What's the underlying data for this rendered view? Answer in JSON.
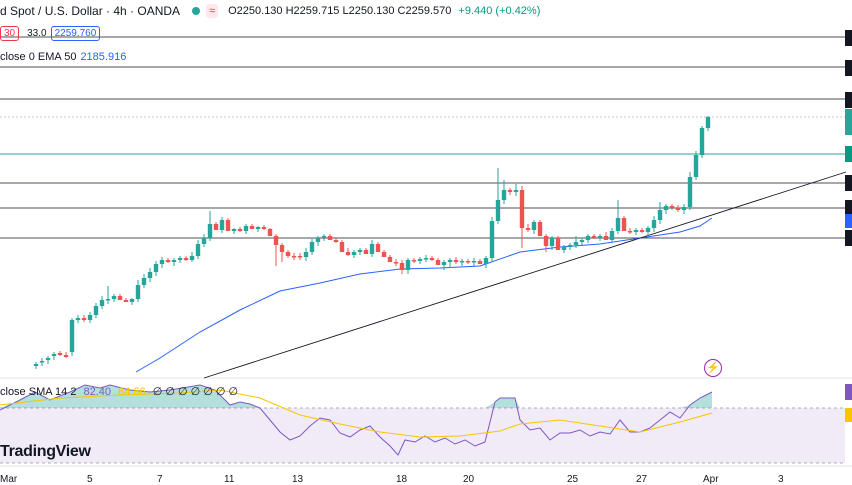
{
  "header": {
    "symbol": "d Spot / U.S. Dollar · 4h · OANDA",
    "badge": "≈",
    "ohlc": "O2250.130 H2259.715 L2250.130 C2259.570",
    "change": "+9.440 (+0.42%)"
  },
  "indicator_row": {
    "left_pill": "30",
    "mid_value": "33.0",
    "right_pill": "2259.760"
  },
  "ema_legend": {
    "label": "close 0 EMA 50",
    "value": "2185.916"
  },
  "rsi_legend": {
    "label": "close SMA 14 2",
    "rsi_value": "82.40",
    "sma_value": "64.66",
    "extra": "∅ ∅ ∅ ∅ ∅ ∅ ∅"
  },
  "logo": {
    "text": "TradingView"
  },
  "xaxis": {
    "labels": [
      "Mar",
      "5",
      "7",
      "11",
      "13",
      "18",
      "20",
      "25",
      "27",
      "Apr",
      "3"
    ]
  },
  "colors": {
    "up": "#26a69a",
    "down": "#ef5350",
    "ema": "#2962ff",
    "rsi": "#7e57c2",
    "rsi_ma": "#f7c600",
    "rsi_band": "#ede7f6",
    "accent_line": "#26a69a"
  },
  "icons": [
    "bolt-icon"
  ],
  "chart_data": {
    "type": "candlestick",
    "candles": [
      [
        36,
        366,
        369,
        364,
        362,
        "u"
      ],
      [
        42,
        362,
        366,
        361,
        358,
        "u"
      ],
      [
        48,
        360,
        364,
        358,
        356,
        "u"
      ],
      [
        54,
        356,
        360,
        354,
        352,
        "u"
      ],
      [
        60,
        353,
        356,
        355,
        351,
        "d"
      ],
      [
        66,
        355,
        358,
        357,
        352,
        "d"
      ],
      [
        72,
        352,
        356,
        320,
        318,
        "u"
      ],
      [
        78,
        320,
        323,
        318,
        315,
        "u"
      ],
      [
        84,
        318,
        322,
        320,
        315,
        "d"
      ],
      [
        90,
        320,
        323,
        315,
        312,
        "u"
      ],
      [
        96,
        315,
        318,
        306,
        303,
        "u"
      ],
      [
        102,
        306,
        309,
        300,
        296,
        "u"
      ],
      [
        108,
        300,
        304,
        299,
        286,
        "u"
      ],
      [
        114,
        299,
        302,
        296,
        294,
        "u"
      ],
      [
        120,
        296,
        300,
        300,
        294,
        "d"
      ],
      [
        126,
        300,
        302,
        302,
        298,
        "d"
      ],
      [
        132,
        302,
        305,
        299,
        298,
        "u"
      ],
      [
        138,
        299,
        302,
        285,
        280,
        "u"
      ],
      [
        144,
        285,
        288,
        278,
        274,
        "u"
      ],
      [
        150,
        278,
        282,
        272,
        268,
        "u"
      ],
      [
        156,
        272,
        276,
        264,
        261,
        "u"
      ],
      [
        162,
        264,
        268,
        260,
        257,
        "u"
      ],
      [
        168,
        260,
        263,
        262,
        258,
        "d"
      ],
      [
        174,
        262,
        266,
        260,
        258,
        "u"
      ],
      [
        180,
        260,
        263,
        258,
        256,
        "u"
      ],
      [
        186,
        258,
        261,
        260,
        256,
        "d"
      ],
      [
        192,
        260,
        262,
        256,
        252,
        "u"
      ],
      [
        198,
        256,
        259,
        244,
        240,
        "u"
      ],
      [
        204,
        244,
        247,
        238,
        234,
        "u"
      ],
      [
        210,
        238,
        241,
        224,
        211,
        "u"
      ],
      [
        216,
        224,
        228,
        230,
        222,
        "d"
      ],
      [
        222,
        230,
        233,
        220,
        217,
        "u"
      ],
      [
        228,
        220,
        223,
        231,
        218,
        "d"
      ],
      [
        234,
        231,
        234,
        229,
        228,
        "u"
      ],
      [
        240,
        229,
        232,
        231,
        227,
        "d"
      ],
      [
        246,
        231,
        234,
        226,
        224,
        "u"
      ],
      [
        252,
        226,
        228,
        229,
        224,
        "d"
      ],
      [
        258,
        229,
        232,
        227,
        226,
        "u"
      ],
      [
        264,
        227,
        230,
        229,
        225,
        "d"
      ],
      [
        270,
        229,
        232,
        236,
        228,
        "d"
      ],
      [
        276,
        236,
        266,
        245,
        234,
        "d"
      ],
      [
        282,
        245,
        262,
        252,
        243,
        "d"
      ],
      [
        288,
        252,
        258,
        256,
        250,
        "d"
      ],
      [
        294,
        256,
        260,
        256,
        253,
        "d"
      ],
      [
        300,
        256,
        260,
        257,
        253,
        "d"
      ],
      [
        306,
        257,
        261,
        252,
        248,
        "u"
      ],
      [
        312,
        252,
        255,
        242,
        239,
        "u"
      ],
      [
        318,
        242,
        246,
        238,
        236,
        "u"
      ],
      [
        324,
        238,
        241,
        236,
        234,
        "u"
      ],
      [
        330,
        236,
        239,
        240,
        234,
        "d"
      ],
      [
        336,
        240,
        243,
        242,
        238,
        "d"
      ],
      [
        342,
        242,
        245,
        252,
        240,
        "d"
      ],
      [
        348,
        252,
        256,
        255,
        248,
        "d"
      ],
      [
        354,
        255,
        258,
        252,
        250,
        "u"
      ],
      [
        360,
        252,
        255,
        250,
        248,
        "u"
      ],
      [
        366,
        250,
        253,
        254,
        248,
        "d"
      ],
      [
        372,
        254,
        257,
        244,
        240,
        "u"
      ],
      [
        378,
        244,
        247,
        252,
        242,
        "d"
      ],
      [
        384,
        252,
        256,
        257,
        250,
        "d"
      ],
      [
        390,
        257,
        260,
        262,
        255,
        "d"
      ],
      [
        396,
        262,
        266,
        263,
        259,
        "d"
      ],
      [
        402,
        263,
        274,
        270,
        260,
        "d"
      ],
      [
        408,
        270,
        274,
        260,
        258,
        "u"
      ],
      [
        414,
        260,
        263,
        261,
        258,
        "d"
      ],
      [
        420,
        261,
        264,
        259,
        257,
        "u"
      ],
      [
        426,
        259,
        262,
        258,
        255,
        "u"
      ],
      [
        432,
        258,
        261,
        260,
        256,
        "d"
      ],
      [
        438,
        260,
        263,
        265,
        258,
        "d"
      ],
      [
        444,
        265,
        270,
        262,
        260,
        "u"
      ],
      [
        450,
        262,
        268,
        260,
        258,
        "u"
      ],
      [
        456,
        260,
        264,
        262,
        257,
        "d"
      ],
      [
        462,
        262,
        266,
        261,
        259,
        "u"
      ],
      [
        468,
        261,
        264,
        262,
        259,
        "d"
      ],
      [
        474,
        262,
        266,
        261,
        258,
        "u"
      ],
      [
        480,
        261,
        264,
        264,
        259,
        "d"
      ],
      [
        486,
        264,
        268,
        258,
        256,
        "u"
      ],
      [
        492,
        258,
        262,
        221,
        217,
        "u"
      ],
      [
        498,
        221,
        224,
        200,
        168,
        "u"
      ],
      [
        504,
        200,
        204,
        190,
        180,
        "u"
      ],
      [
        510,
        190,
        195,
        192,
        188,
        "d"
      ],
      [
        516,
        192,
        196,
        190,
        184,
        "u"
      ],
      [
        522,
        190,
        248,
        228,
        186,
        "d"
      ],
      [
        528,
        228,
        232,
        230,
        224,
        "d"
      ],
      [
        534,
        230,
        234,
        222,
        220,
        "u"
      ],
      [
        540,
        222,
        226,
        236,
        220,
        "d"
      ],
      [
        546,
        236,
        252,
        246,
        234,
        "d"
      ],
      [
        552,
        246,
        250,
        238,
        236,
        "u"
      ],
      [
        558,
        238,
        242,
        250,
        236,
        "d"
      ],
      [
        564,
        250,
        253,
        247,
        245,
        "u"
      ],
      [
        570,
        247,
        250,
        245,
        243,
        "u"
      ],
      [
        576,
        245,
        248,
        242,
        236,
        "u"
      ],
      [
        582,
        242,
        245,
        240,
        238,
        "u"
      ],
      [
        588,
        240,
        243,
        236,
        234,
        "u"
      ],
      [
        594,
        236,
        239,
        238,
        234,
        "d"
      ],
      [
        600,
        238,
        241,
        236,
        234,
        "u"
      ],
      [
        606,
        236,
        239,
        240,
        232,
        "d"
      ],
      [
        612,
        240,
        242,
        231,
        228,
        "u"
      ],
      [
        618,
        231,
        234,
        218,
        200,
        "u"
      ],
      [
        624,
        218,
        222,
        231,
        216,
        "d"
      ],
      [
        630,
        231,
        234,
        232,
        228,
        "d"
      ],
      [
        636,
        232,
        235,
        230,
        228,
        "u"
      ],
      [
        642,
        230,
        233,
        232,
        228,
        "d"
      ],
      [
        648,
        232,
        236,
        228,
        226,
        "u"
      ],
      [
        654,
        228,
        232,
        220,
        216,
        "u"
      ],
      [
        660,
        220,
        224,
        210,
        202,
        "u"
      ],
      [
        666,
        210,
        214,
        206,
        204,
        "u"
      ],
      [
        672,
        206,
        210,
        208,
        204,
        "d"
      ],
      [
        678,
        208,
        212,
        210,
        205,
        "d"
      ],
      [
        684,
        210,
        214,
        207,
        204,
        "u"
      ],
      [
        690,
        207,
        210,
        177,
        172,
        "u"
      ],
      [
        696,
        177,
        180,
        155,
        151,
        "u"
      ],
      [
        702,
        155,
        158,
        128,
        126,
        "u"
      ],
      [
        708,
        128,
        131,
        117,
        116,
        "u"
      ]
    ],
    "ema": [
      [
        136,
        372
      ],
      [
        160,
        358
      ],
      [
        200,
        332
      ],
      [
        240,
        310
      ],
      [
        280,
        291
      ],
      [
        320,
        283
      ],
      [
        360,
        274
      ],
      [
        400,
        269
      ],
      [
        440,
        268
      ],
      [
        480,
        266
      ],
      [
        520,
        252
      ],
      [
        560,
        247
      ],
      [
        600,
        244
      ],
      [
        640,
        238
      ],
      [
        680,
        232
      ],
      [
        700,
        226
      ],
      [
        712,
        218
      ]
    ],
    "trend_line": [
      [
        204,
        378
      ],
      [
        846,
        172
      ]
    ],
    "horizontal_levels": [
      37,
      67,
      99,
      117,
      154,
      183,
      208,
      238
    ],
    "rsi": [
      [
        0,
        410
      ],
      [
        20,
        400
      ],
      [
        35,
        392
      ],
      [
        50,
        400
      ],
      [
        70,
        392
      ],
      [
        85,
        385
      ],
      [
        100,
        388
      ],
      [
        110,
        385
      ],
      [
        130,
        390
      ],
      [
        150,
        392
      ],
      [
        170,
        390
      ],
      [
        200,
        385
      ],
      [
        215,
        390
      ],
      [
        230,
        405
      ],
      [
        240,
        402
      ],
      [
        250,
        404
      ],
      [
        260,
        408
      ],
      [
        270,
        420
      ],
      [
        280,
        432
      ],
      [
        290,
        440
      ],
      [
        300,
        436
      ],
      [
        310,
        426
      ],
      [
        320,
        418
      ],
      [
        330,
        420
      ],
      [
        340,
        433
      ],
      [
        350,
        437
      ],
      [
        360,
        430
      ],
      [
        370,
        426
      ],
      [
        380,
        437
      ],
      [
        390,
        446
      ],
      [
        398,
        455
      ],
      [
        405,
        440
      ],
      [
        415,
        442
      ],
      [
        425,
        436
      ],
      [
        435,
        442
      ],
      [
        445,
        438
      ],
      [
        455,
        444
      ],
      [
        465,
        440
      ],
      [
        475,
        446
      ],
      [
        485,
        442
      ],
      [
        495,
        402
      ],
      [
        500,
        398
      ],
      [
        510,
        398
      ],
      [
        515,
        398
      ],
      [
        520,
        420
      ],
      [
        530,
        430
      ],
      [
        540,
        428
      ],
      [
        550,
        440
      ],
      [
        560,
        433
      ],
      [
        570,
        433
      ],
      [
        580,
        430
      ],
      [
        590,
        436
      ],
      [
        600,
        432
      ],
      [
        610,
        434
      ],
      [
        620,
        420
      ],
      [
        630,
        432
      ],
      [
        640,
        432
      ],
      [
        650,
        428
      ],
      [
        660,
        420
      ],
      [
        670,
        412
      ],
      [
        680,
        418
      ],
      [
        690,
        405
      ],
      [
        700,
        398
      ],
      [
        712,
        392
      ]
    ],
    "rsi_ma": [
      [
        0,
        405
      ],
      [
        60,
        398
      ],
      [
        120,
        395
      ],
      [
        180,
        393
      ],
      [
        220,
        390
      ],
      [
        260,
        398
      ],
      [
        300,
        415
      ],
      [
        340,
        424
      ],
      [
        380,
        432
      ],
      [
        420,
        437
      ],
      [
        460,
        436
      ],
      [
        500,
        431
      ],
      [
        520,
        424
      ],
      [
        560,
        420
      ],
      [
        600,
        426
      ],
      [
        640,
        432
      ],
      [
        680,
        422
      ],
      [
        712,
        413
      ]
    ]
  }
}
